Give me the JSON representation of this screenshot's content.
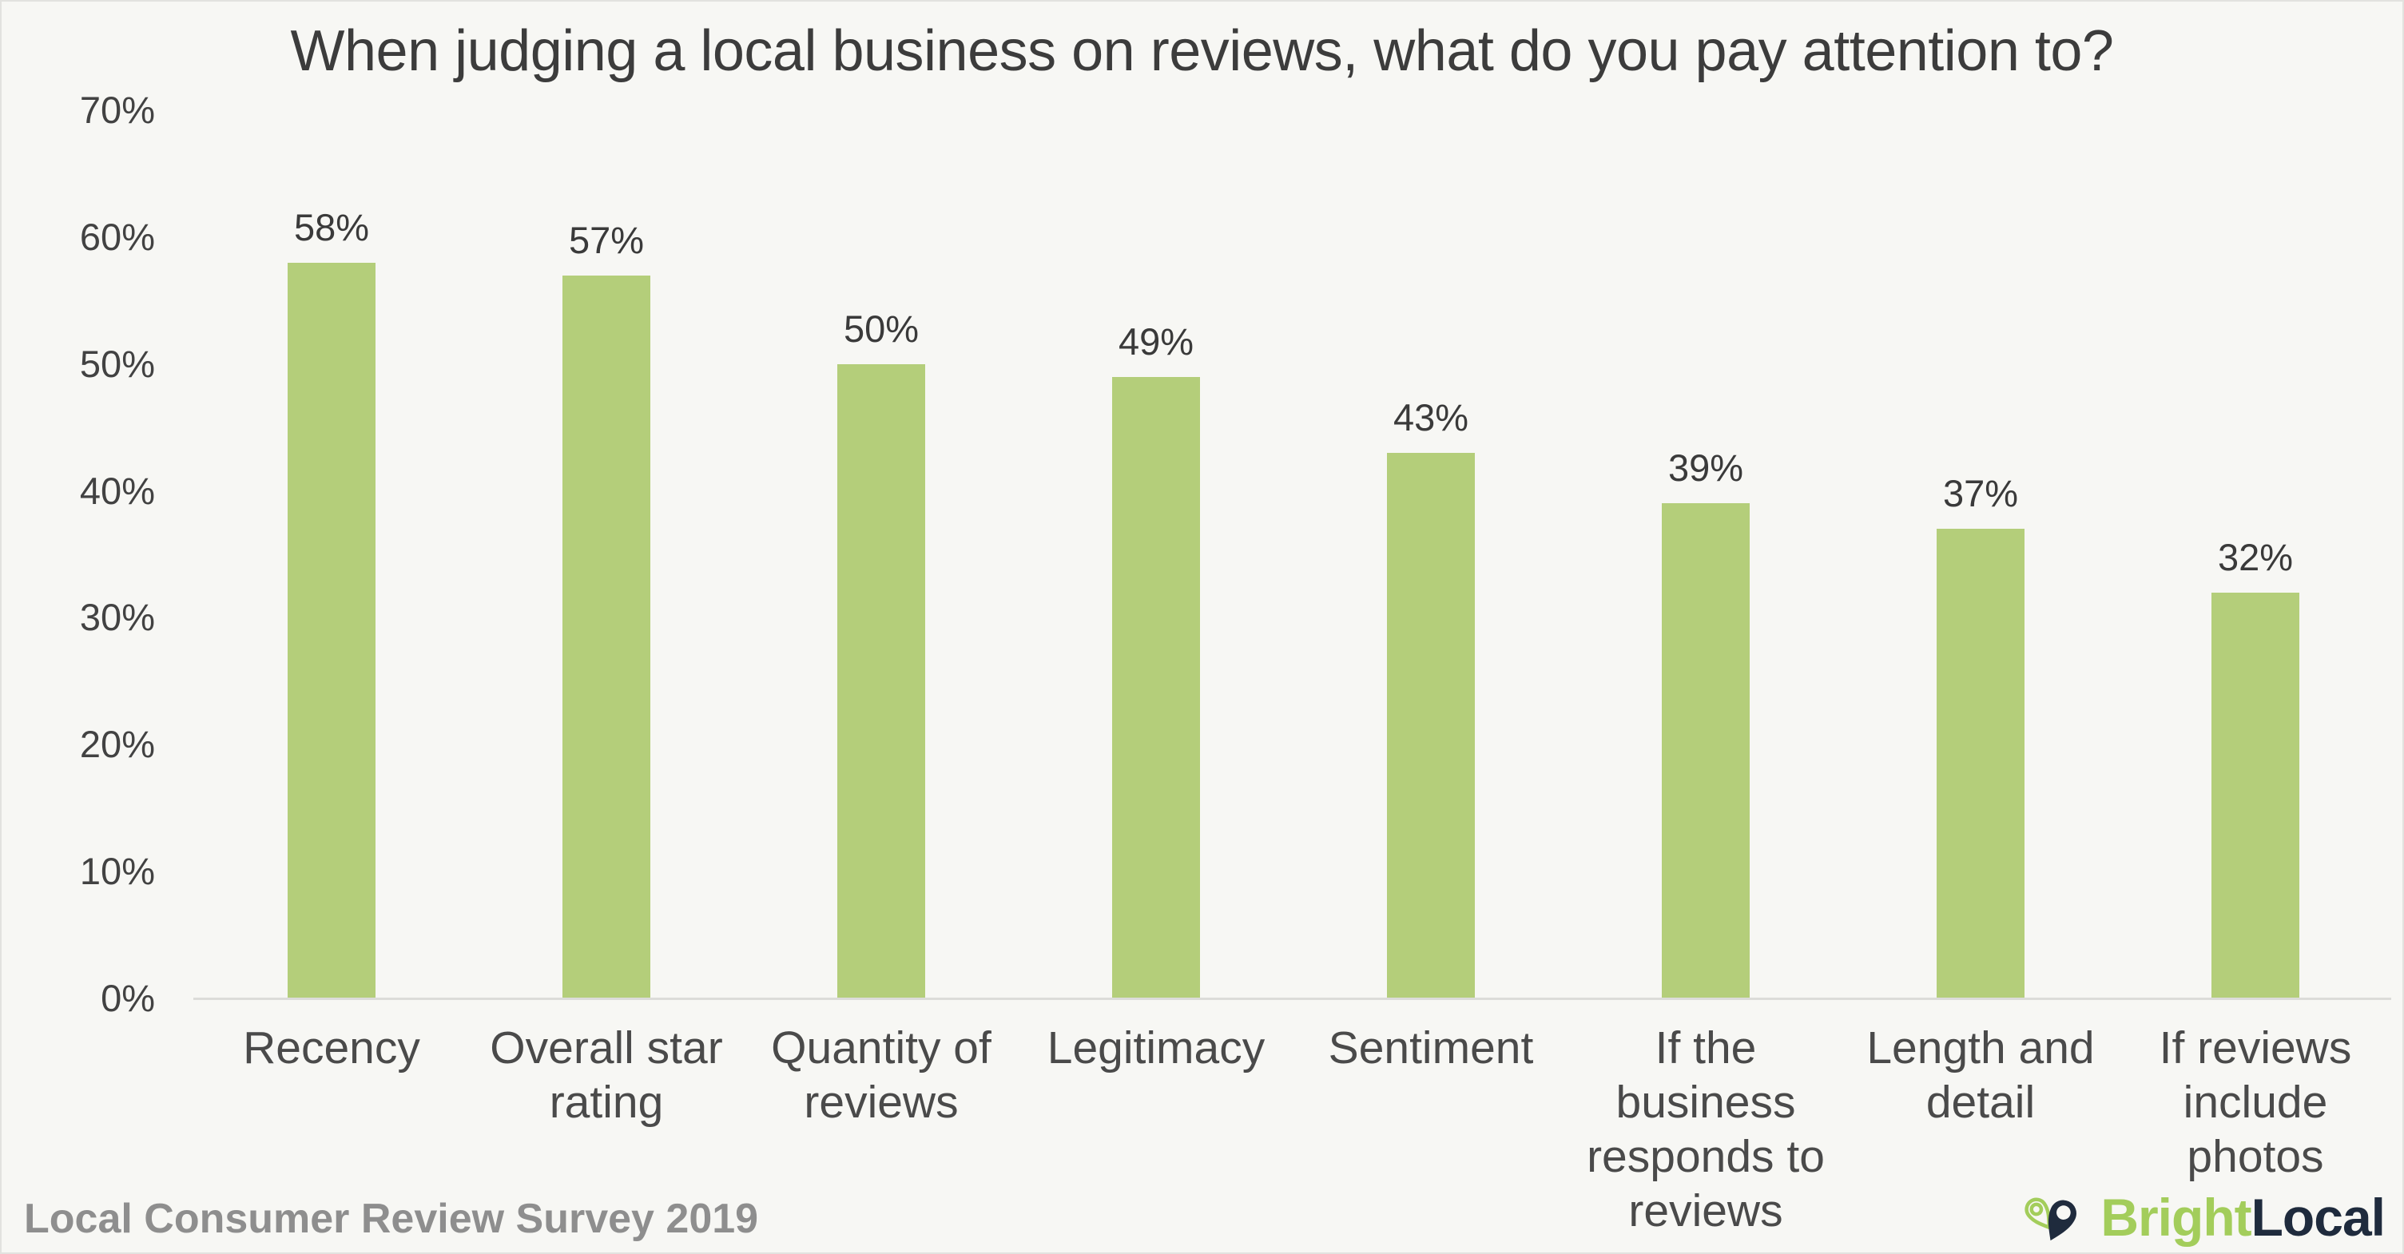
{
  "title": "When judging a local business on reviews, what do you pay attention to?",
  "footer": {
    "source": "Local Consumer Review Survey 2019",
    "brand_bright": "Bright",
    "brand_local": "Local"
  },
  "colors": {
    "background": "#f7f7f4",
    "bar": "#b4ce7a",
    "title_text": "#3c3c3c",
    "axis_text": "#424242",
    "category_text": "#4a4a4a",
    "source_text": "#8e8e8e",
    "logo_green": "#a3cd5b",
    "logo_navy": "#1f2b3d",
    "axis_line": "#dcdcd9"
  },
  "chart_data": {
    "type": "bar",
    "title": "When judging a local business on reviews, what do you pay attention to?",
    "categories": [
      "Recency",
      "Overall star rating",
      "Quantity of reviews",
      "Legitimacy",
      "Sentiment",
      "If the business responds to reviews",
      "Length and detail",
      "If reviews include photos"
    ],
    "category_lines": [
      [
        "Recency"
      ],
      [
        "Overall star",
        "rating"
      ],
      [
        "Quantity of",
        "reviews"
      ],
      [
        "Legitimacy"
      ],
      [
        "Sentiment"
      ],
      [
        "If the business",
        "responds to",
        "reviews"
      ],
      [
        "Length and",
        "detail"
      ],
      [
        "If reviews",
        "include photos"
      ]
    ],
    "values": [
      58,
      57,
      50,
      49,
      43,
      39,
      37,
      32
    ],
    "value_labels": [
      "58%",
      "57%",
      "50%",
      "49%",
      "43%",
      "39%",
      "37%",
      "32%"
    ],
    "xlabel": "",
    "ylabel": "",
    "ylim": [
      0,
      70
    ],
    "y_ticks": [
      "0%",
      "10%",
      "20%",
      "30%",
      "40%",
      "50%",
      "60%",
      "70%"
    ],
    "y_tick_values": [
      0,
      10,
      20,
      30,
      40,
      50,
      60,
      70
    ],
    "grid": false,
    "legend": false,
    "bar_color": "#b4ce7a"
  }
}
